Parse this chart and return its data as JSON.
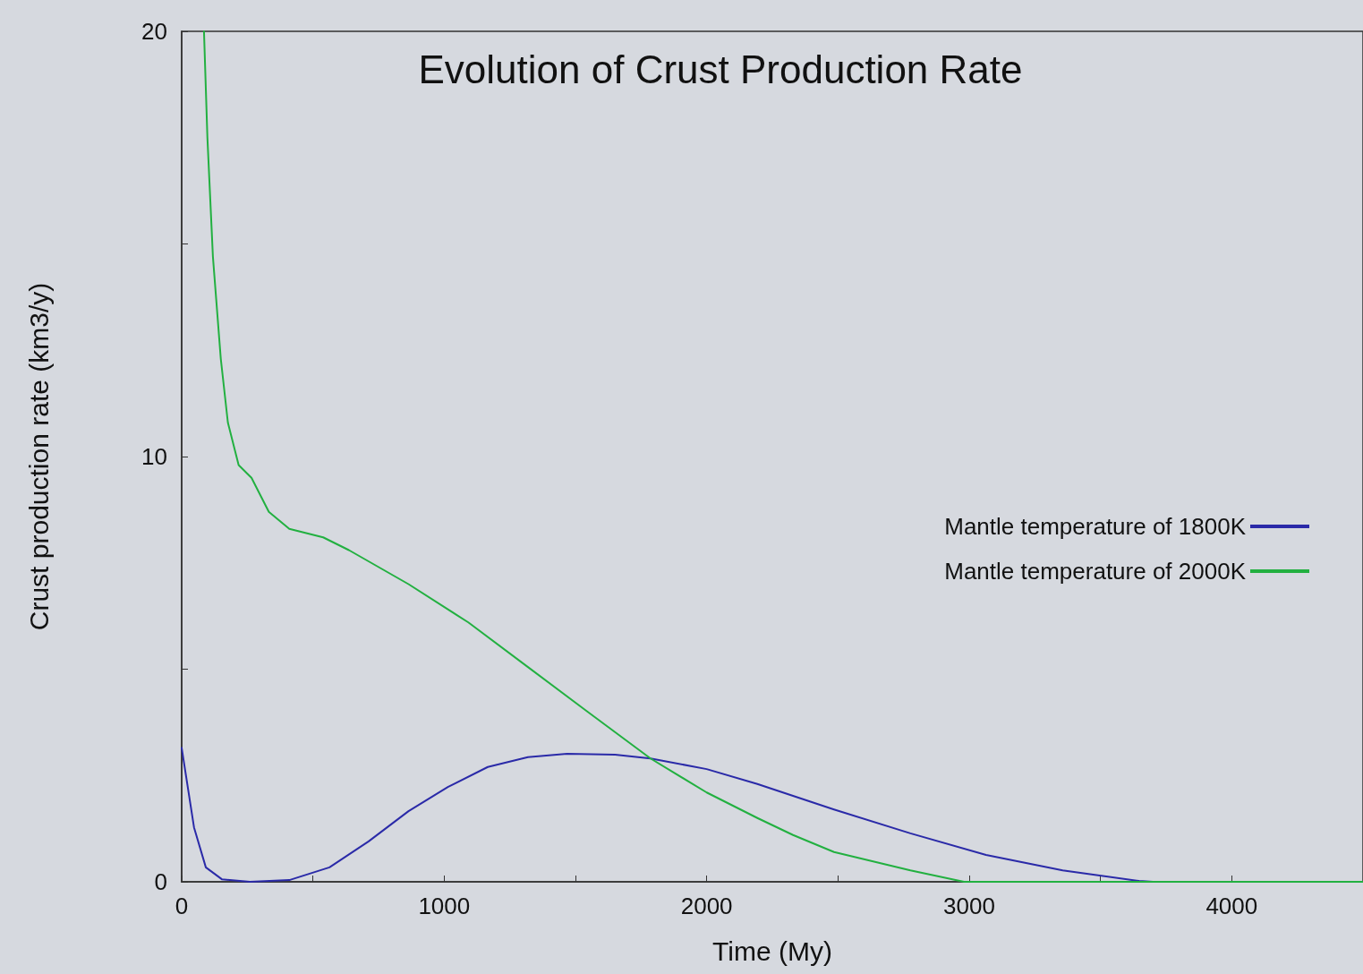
{
  "chart_data": {
    "type": "line",
    "title": "Evolution of Crust Production Rate",
    "xlabel": "Time (My)",
    "ylabel": "Crust production rate (km3/y)",
    "xlim": [
      0,
      4500
    ],
    "xticks": [
      0,
      {
        "value": 500,
        "label": null
      },
      1000,
      {
        "value": 1500,
        "label": null
      },
      2000,
      {
        "value": 2500,
        "label": null
      },
      3000,
      {
        "value": 3500,
        "label": null
      },
      4000
    ],
    "ylim": [
      0,
      20
    ],
    "yticks": [
      0,
      {
        "value": 5,
        "label": null
      },
      10,
      {
        "value": 15,
        "label": null
      },
      20
    ],
    "grid": false,
    "legend": "right",
    "marker": "none",
    "line_style": "solid",
    "series": [
      {
        "name": "Mantle temperature of 1800K",
        "color": "#2a2aa8",
        "x": [
          0,
          47,
          92,
          153,
          260,
          410,
          563,
          712,
          864,
          1014,
          1166,
          1319,
          1468,
          1651,
          1786,
          2000,
          2193,
          2485,
          2776,
          3064,
          3356,
          3647,
          3700,
          4500
        ],
        "values": [
          3.15,
          1.28,
          0.34,
          0.06,
          0,
          0.04,
          0.34,
          0.95,
          1.66,
          2.23,
          2.7,
          2.93,
          3.01,
          2.99,
          2.9,
          2.65,
          2.3,
          1.7,
          1.14,
          0.63,
          0.27,
          0.02,
          0,
          0
        ]
      },
      {
        "name": "Mantle temperature of 2000K",
        "color": "#22b040",
        "x": [
          85,
          98,
          119,
          149,
          176,
          217,
          266,
          332,
          410,
          539,
          637,
          864,
          1092,
          1319,
          1546,
          1786,
          2000,
          2193,
          2329,
          2485,
          2776,
          2980,
          4500
        ],
        "values": [
          20,
          17.5,
          14.7,
          12.3,
          10.8,
          9.8,
          9.5,
          8.7,
          8.3,
          8.1,
          7.8,
          7.0,
          6.1,
          5.05,
          4.0,
          2.9,
          2.1,
          1.5,
          1.1,
          0.7,
          0.27,
          0,
          0
        ]
      }
    ]
  }
}
